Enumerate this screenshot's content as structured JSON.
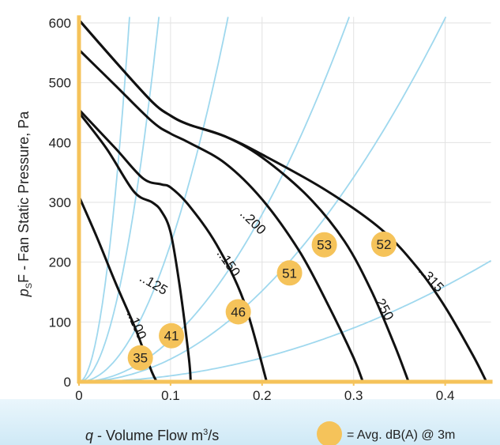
{
  "chart_data": {
    "type": "line",
    "ylabel_main": "F - Fan Static Pressure, Pa",
    "ylabel_symbol": "p",
    "ylabel_sub": "S",
    "xlabel_symbol": "q",
    "xlabel_text": "- Volume Flow",
    "xlabel_unit": "m",
    "xlabel_unit_sup": "3",
    "xlabel_unit_tail": "/s",
    "legend_text": "= Avg. dB(A) @ 3m",
    "xlim": [
      0,
      0.45
    ],
    "ylim": [
      0,
      610
    ],
    "x_ticks": [
      "0",
      "0.1",
      "0.2",
      "0.3",
      "0.4"
    ],
    "x_tick_values": [
      0,
      0.1,
      0.2,
      0.3,
      0.4
    ],
    "y_ticks": [
      "0",
      "100",
      "200",
      "300",
      "400",
      "500",
      "600"
    ],
    "y_tick_values": [
      0,
      100,
      200,
      300,
      400,
      500,
      600
    ],
    "grid": true,
    "colors": {
      "axis": "#f5c35a",
      "fan_curve": "#111111",
      "system_curve": "#9fd8ee",
      "marker_fill": "#f5c35a",
      "band": "#d8eef9",
      "grid": "#e2e2e2"
    },
    "fan_curves": [
      {
        "label": "..100",
        "points": [
          [
            0,
            310
          ],
          [
            0.02,
            240
          ],
          [
            0.04,
            165
          ],
          [
            0.06,
            95
          ],
          [
            0.07,
            55
          ],
          [
            0.08,
            15
          ],
          [
            0.085,
            0
          ]
        ],
        "label_at": [
          0.052,
          115
        ]
      },
      {
        "label": "..125",
        "points": [
          [
            0,
            450
          ],
          [
            0.03,
            390
          ],
          [
            0.06,
            318
          ],
          [
            0.08,
            300
          ],
          [
            0.09,
            285
          ],
          [
            0.1,
            250
          ],
          [
            0.11,
            160
          ],
          [
            0.12,
            40
          ],
          [
            0.122,
            0
          ]
        ],
        "label_at": [
          0.065,
          170
        ]
      },
      {
        "label": "..150",
        "points": [
          [
            0,
            455
          ],
          [
            0.04,
            390
          ],
          [
            0.07,
            340
          ],
          [
            0.09,
            330
          ],
          [
            0.1,
            325
          ],
          [
            0.12,
            295
          ],
          [
            0.15,
            230
          ],
          [
            0.18,
            135
          ],
          [
            0.205,
            0
          ]
        ],
        "label_at": [
          0.15,
          215
        ]
      },
      {
        "label": "..200",
        "points": [
          [
            0,
            555
          ],
          [
            0.04,
            495
          ],
          [
            0.08,
            435
          ],
          [
            0.1,
            415
          ],
          [
            0.12,
            400
          ],
          [
            0.16,
            365
          ],
          [
            0.2,
            305
          ],
          [
            0.24,
            220
          ],
          [
            0.27,
            135
          ],
          [
            0.3,
            40
          ],
          [
            0.31,
            0
          ]
        ],
        "label_at": [
          0.175,
          280
        ]
      },
      {
        "label": "..250",
        "points": [
          [
            0,
            605
          ],
          [
            0.04,
            535
          ],
          [
            0.08,
            468
          ],
          [
            0.1,
            445
          ],
          [
            0.12,
            430
          ],
          [
            0.16,
            410
          ],
          [
            0.2,
            375
          ],
          [
            0.25,
            310
          ],
          [
            0.29,
            235
          ],
          [
            0.32,
            150
          ],
          [
            0.345,
            60
          ],
          [
            0.36,
            0
          ]
        ],
        "label_at": [
          0.32,
          145
        ]
      },
      {
        "label": "..315",
        "points": [
          [
            0,
            605
          ],
          [
            0.04,
            535
          ],
          [
            0.08,
            468
          ],
          [
            0.1,
            445
          ],
          [
            0.12,
            430
          ],
          [
            0.16,
            410
          ],
          [
            0.2,
            380
          ],
          [
            0.27,
            320
          ],
          [
            0.33,
            255
          ],
          [
            0.37,
            190
          ],
          [
            0.4,
            125
          ],
          [
            0.43,
            45
          ],
          [
            0.445,
            0
          ]
        ],
        "label_at": [
          0.37,
          185
        ]
      }
    ],
    "system_curve_coefficients": [
      200000,
      80000,
      23000,
      7000,
      3800,
      1000
    ],
    "db_markers": [
      {
        "value": "35",
        "x": 0.067,
        "y": 40
      },
      {
        "value": "41",
        "x": 0.101,
        "y": 77
      },
      {
        "value": "46",
        "x": 0.174,
        "y": 117
      },
      {
        "value": "51",
        "x": 0.23,
        "y": 182
      },
      {
        "value": "53",
        "x": 0.268,
        "y": 229
      },
      {
        "value": "52",
        "x": 0.333,
        "y": 230
      }
    ]
  }
}
